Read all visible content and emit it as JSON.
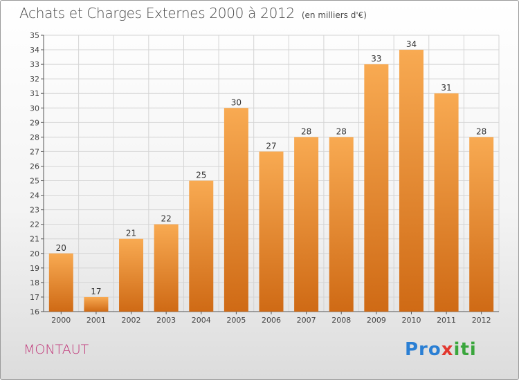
{
  "header": {
    "title": "Achats et Charges Externes 2000 à 2012",
    "unit": "(en milliers d'€)"
  },
  "footer": {
    "commune": "MONTAUT",
    "brand_part1": "Pro",
    "brand_part2": "x",
    "brand_part3": "iti"
  },
  "colors": {
    "bar_light": "#f8aa52",
    "bar_dark": "#cf6a15",
    "commune": "#c1387a",
    "brand_blue": "#2a7fd4",
    "brand_red": "#e2372e",
    "brand_green": "#3aa63c"
  },
  "chart_data": {
    "type": "bar",
    "title": "Achats et Charges Externes 2000 à 2012",
    "categories": [
      "2000",
      "2001",
      "2002",
      "2003",
      "2004",
      "2005",
      "2006",
      "2007",
      "2008",
      "2009",
      "2010",
      "2011",
      "2012"
    ],
    "values": [
      20,
      17,
      21,
      22,
      25,
      30,
      27,
      28,
      28,
      33,
      34,
      31,
      28
    ],
    "xlabel": "",
    "ylabel": "",
    "ylim": [
      16,
      35
    ],
    "yticks": [
      16,
      17,
      18,
      19,
      20,
      21,
      22,
      23,
      24,
      25,
      26,
      27,
      28,
      29,
      30,
      31,
      32,
      33,
      34,
      35
    ],
    "grid": true,
    "legend": "none"
  }
}
